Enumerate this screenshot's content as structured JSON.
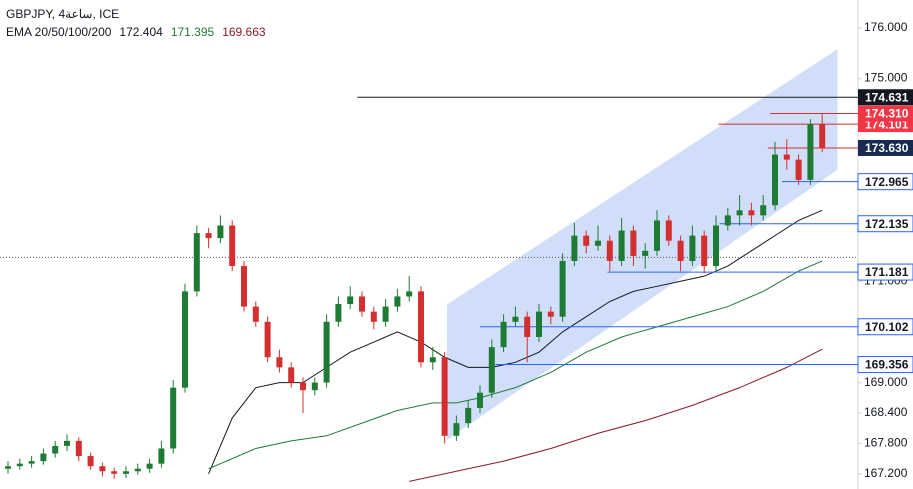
{
  "chart_data": {
    "type": "candlestick",
    "title": "GBPJPY, 4ساعة, ICE",
    "indicator": {
      "label": "EMA 20/50/100/200",
      "values": [
        172.404,
        171.395,
        169.663
      ],
      "colors": [
        "#131722",
        "#1e7b34",
        "#8b1a2b"
      ]
    },
    "ylim": [
      166.9,
      176.55
    ],
    "yticks": [
      {
        "value": 176,
        "label": "176.000"
      },
      {
        "value": 175,
        "label": "175.000"
      },
      {
        "value": 171,
        "label": "171.000"
      },
      {
        "value": 169,
        "label": "169.000"
      },
      {
        "value": 168.4,
        "label": "168.400"
      },
      {
        "value": 167.8,
        "label": "167.800"
      },
      {
        "value": 167.2,
        "label": "167.200"
      }
    ],
    "up_color": "#1e7b34",
    "down_color": "#d32f2f",
    "candles": [
      [
        167.3,
        167.45,
        167.2,
        167.35
      ],
      [
        167.35,
        167.5,
        167.28,
        167.4
      ],
      [
        167.4,
        167.55,
        167.32,
        167.45
      ],
      [
        167.45,
        167.7,
        167.38,
        167.6
      ],
      [
        167.6,
        167.85,
        167.52,
        167.75
      ],
      [
        167.75,
        167.98,
        167.65,
        167.85
      ],
      [
        167.85,
        167.92,
        167.45,
        167.55
      ],
      [
        167.55,
        167.62,
        167.28,
        167.35
      ],
      [
        167.35,
        167.42,
        167.15,
        167.25
      ],
      [
        167.25,
        167.32,
        167.1,
        167.2
      ],
      [
        167.2,
        167.35,
        167.12,
        167.25
      ],
      [
        167.25,
        167.4,
        167.18,
        167.3
      ],
      [
        167.3,
        167.5,
        167.22,
        167.4
      ],
      [
        167.4,
        167.85,
        167.32,
        167.7
      ],
      [
        167.7,
        169.05,
        167.6,
        168.9
      ],
      [
        168.9,
        170.95,
        168.8,
        170.8
      ],
      [
        170.8,
        172.1,
        170.7,
        171.95
      ],
      [
        171.95,
        172.05,
        171.65,
        171.85
      ],
      [
        171.85,
        172.3,
        171.75,
        172.1
      ],
      [
        172.1,
        172.2,
        171.2,
        171.3
      ],
      [
        171.3,
        171.4,
        170.4,
        170.5
      ],
      [
        170.5,
        170.6,
        170.1,
        170.2
      ],
      [
        170.2,
        170.3,
        169.4,
        169.5
      ],
      [
        169.5,
        169.65,
        169.2,
        169.3
      ],
      [
        169.3,
        169.4,
        168.9,
        169.0
      ],
      [
        169.0,
        169.1,
        168.4,
        168.85
      ],
      [
        168.85,
        169.1,
        168.75,
        169.0
      ],
      [
        169.0,
        170.35,
        168.9,
        170.2
      ],
      [
        170.2,
        170.7,
        170.1,
        170.55
      ],
      [
        170.55,
        170.9,
        170.45,
        170.7
      ],
      [
        170.7,
        170.8,
        170.3,
        170.4
      ],
      [
        170.4,
        170.5,
        170.05,
        170.2
      ],
      [
        170.2,
        170.65,
        170.1,
        170.5
      ],
      [
        170.5,
        170.85,
        170.4,
        170.7
      ],
      [
        170.7,
        171.1,
        170.6,
        170.8
      ],
      [
        170.8,
        170.9,
        169.3,
        169.4
      ],
      [
        169.4,
        169.7,
        169.25,
        169.5
      ],
      [
        169.5,
        169.6,
        167.8,
        167.95
      ],
      [
        167.95,
        168.35,
        167.85,
        168.2
      ],
      [
        168.2,
        168.65,
        168.1,
        168.5
      ],
      [
        168.5,
        168.95,
        168.4,
        168.8
      ],
      [
        168.8,
        169.85,
        168.7,
        169.7
      ],
      [
        169.7,
        170.35,
        169.6,
        170.2
      ],
      [
        170.2,
        170.5,
        170.1,
        170.3
      ],
      [
        170.3,
        170.4,
        169.4,
        169.9
      ],
      [
        169.9,
        170.55,
        169.8,
        170.4
      ],
      [
        170.4,
        170.5,
        170.15,
        170.3
      ],
      [
        170.3,
        171.55,
        170.2,
        171.4
      ],
      [
        171.4,
        172.15,
        171.3,
        171.9
      ],
      [
        171.9,
        172.0,
        171.55,
        171.7
      ],
      [
        171.7,
        172.1,
        171.6,
        171.8
      ],
      [
        171.8,
        171.9,
        171.2,
        171.4
      ],
      [
        171.4,
        172.25,
        171.3,
        172.0
      ],
      [
        172.0,
        172.1,
        171.3,
        171.5
      ],
      [
        171.5,
        171.75,
        171.25,
        171.6
      ],
      [
        171.6,
        172.4,
        171.5,
        172.2
      ],
      [
        172.2,
        172.3,
        171.7,
        171.8
      ],
      [
        171.8,
        171.9,
        171.2,
        171.4
      ],
      [
        171.4,
        172.1,
        171.3,
        171.9
      ],
      [
        171.9,
        172.0,
        171.15,
        171.3
      ],
      [
        171.3,
        172.3,
        171.2,
        172.1
      ],
      [
        172.1,
        172.45,
        172.0,
        172.3
      ],
      [
        172.3,
        172.7,
        172.1,
        172.4
      ],
      [
        172.4,
        172.55,
        172.1,
        172.3
      ],
      [
        172.3,
        172.7,
        172.2,
        172.5
      ],
      [
        172.5,
        173.75,
        172.4,
        173.5
      ],
      [
        173.5,
        173.8,
        173.2,
        173.4
      ],
      [
        173.4,
        173.5,
        172.9,
        173.0
      ],
      [
        173.0,
        174.2,
        172.9,
        174.1
      ],
      [
        174.1,
        174.31,
        173.55,
        173.63
      ]
    ],
    "series": [
      {
        "color": "#131722",
        "x": [
          17,
          19,
          21,
          23,
          25,
          27,
          29,
          31,
          33,
          35,
          37,
          39,
          41,
          43,
          45,
          47,
          49,
          51,
          53,
          55,
          57,
          59,
          61,
          63,
          65,
          67,
          69
        ],
        "values": [
          167.2,
          168.3,
          168.9,
          169.0,
          169.0,
          169.3,
          169.6,
          169.8,
          170.0,
          169.8,
          169.5,
          169.3,
          169.3,
          169.4,
          169.6,
          170.0,
          170.3,
          170.6,
          170.8,
          170.9,
          171.0,
          171.1,
          171.3,
          171.6,
          171.9,
          172.2,
          172.4
        ]
      },
      {
        "color": "#1e7b34",
        "x": [
          17,
          18,
          21,
          24,
          27,
          30,
          33,
          36,
          38,
          40,
          43,
          46,
          49,
          52,
          55,
          58,
          61,
          64,
          67,
          69
        ],
        "values": [
          167.3,
          167.4,
          167.7,
          167.85,
          167.95,
          168.2,
          168.45,
          168.6,
          168.6,
          168.7,
          168.9,
          169.2,
          169.6,
          169.9,
          170.1,
          170.3,
          170.5,
          170.8,
          171.2,
          171.4
        ]
      },
      {
        "color": "#8b1a2b",
        "x": [
          34,
          38,
          42,
          46,
          50,
          54,
          58,
          62,
          66,
          69
        ],
        "values": [
          167.05,
          167.25,
          167.45,
          167.7,
          168.0,
          168.25,
          168.55,
          168.9,
          169.3,
          169.66
        ]
      }
    ],
    "channel": {
      "x": [
        37.2,
        70.3
      ],
      "upper": [
        170.54,
        175.58
      ],
      "lower": [
        167.87,
        173.2
      ],
      "color": "#b9cdf7"
    },
    "dotted_level": 171.47,
    "levels": [
      {
        "value": 174.631,
        "start": 29.6,
        "color": "#131722",
        "label_bg": "#131722",
        "label_fg": "#ffffff"
      },
      {
        "value": 174.101,
        "start": 60.2,
        "color": "#d32f2f",
        "label_bg": "#f23645",
        "label_fg": "#ffffff"
      },
      {
        "value": 174.31,
        "start": 64.6,
        "color": "#d32f2f",
        "label_bg": "#f23645",
        "label_fg": "#ffffff",
        "label": "174.310"
      },
      {
        "value": 173.63,
        "start": 64.4,
        "color": "#d32f2f",
        "label_bg": "#162a52",
        "label_fg": "#ffffff",
        "label": "173.630"
      },
      {
        "value": 172.965,
        "start": 65.6,
        "color": "#2962ff",
        "label_bg": "#ffffff",
        "label_fg": "#131722"
      },
      {
        "value": 172.135,
        "start": 60.3,
        "color": "#2962ff",
        "label_bg": "#ffffff",
        "label_fg": "#131722"
      },
      {
        "value": 171.181,
        "start": 50.8,
        "color": "#2962ff",
        "label_bg": "#ffffff",
        "label_fg": "#131722"
      },
      {
        "value": 170.102,
        "start": 40.0,
        "color": "#2962ff",
        "label_bg": "#ffffff",
        "label_fg": "#131722"
      },
      {
        "value": 169.356,
        "start": 41.3,
        "color": "#2962ff",
        "label_bg": "#ffffff",
        "label_fg": "#131722"
      }
    ]
  }
}
